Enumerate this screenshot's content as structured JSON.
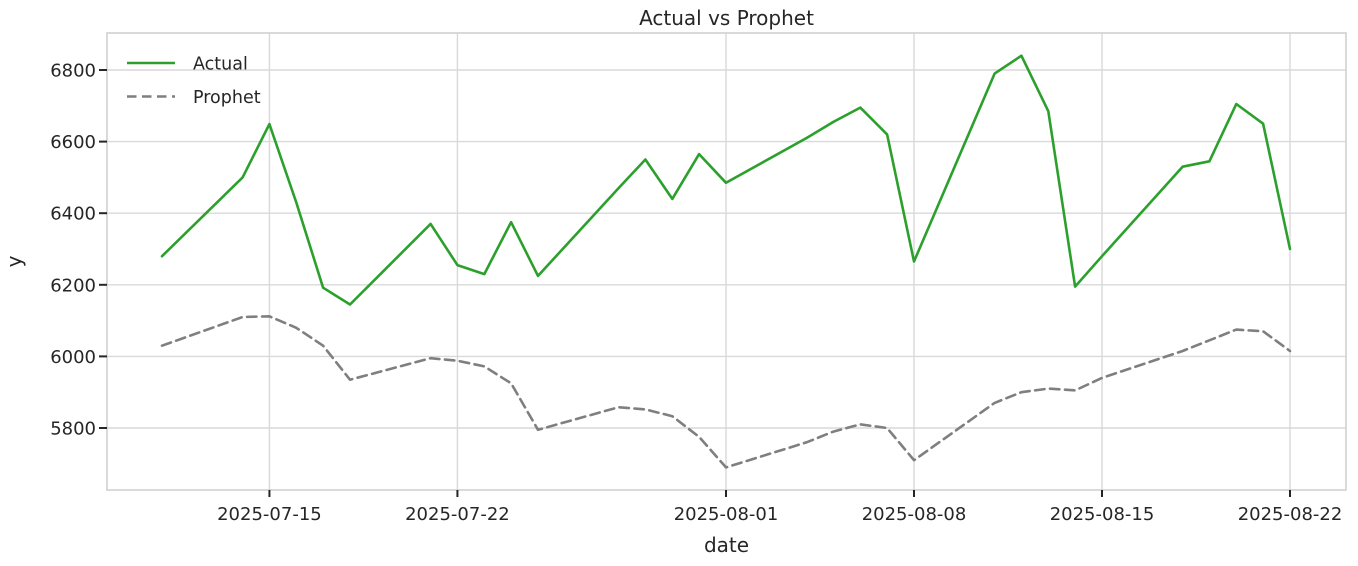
{
  "chart_data": {
    "type": "line",
    "title": "Actual vs Prophet",
    "xlabel": "date",
    "ylabel": "y",
    "grid": true,
    "legend_position": "upper left",
    "x": [
      "2025-07-11",
      "2025-07-14",
      "2025-07-15",
      "2025-07-16",
      "2025-07-17",
      "2025-07-18",
      "2025-07-21",
      "2025-07-22",
      "2025-07-23",
      "2025-07-24",
      "2025-07-25",
      "2025-07-28",
      "2025-07-29",
      "2025-07-30",
      "2025-07-31",
      "2025-08-01",
      "2025-08-04",
      "2025-08-05",
      "2025-08-06",
      "2025-08-07",
      "2025-08-08",
      "2025-08-11",
      "2025-08-12",
      "2025-08-13",
      "2025-08-14",
      "2025-08-15",
      "2025-08-18",
      "2025-08-19",
      "2025-08-20",
      "2025-08-21",
      "2025-08-22"
    ],
    "series": [
      {
        "name": "Actual",
        "color": "#2ca02c",
        "style": "solid",
        "values": [
          6280,
          6500,
          6649,
          6430,
          6192,
          6145,
          6370,
          6255,
          6230,
          6375,
          6225,
          6470,
          6550,
          6440,
          6565,
          6485,
          6610,
          6655,
          6695,
          6620,
          6265,
          6790,
          6840,
          6685,
          6195,
          6280,
          6530,
          6545,
          6705,
          6650,
          6300
        ]
      },
      {
        "name": "Prophet",
        "color": "#7f7f7f",
        "style": "dashed",
        "values": [
          6030,
          6110,
          6112,
          6080,
          6030,
          5935,
          5995,
          5988,
          5972,
          5925,
          5795,
          5858,
          5852,
          5833,
          5775,
          5690,
          5760,
          5790,
          5810,
          5800,
          5710,
          5870,
          5900,
          5910,
          5905,
          5940,
          6015,
          6045,
          6075,
          6070,
          6015
        ]
      }
    ],
    "x_tick_labels": [
      "2025-07-15",
      "2025-07-22",
      "2025-08-01",
      "2025-08-08",
      "2025-08-15",
      "2025-08-22"
    ],
    "y_ticks": [
      5800,
      6000,
      6200,
      6400,
      6600,
      6800
    ],
    "ylim": [
      5627,
      6903
    ],
    "colors": {
      "grid": "#d9d9d9",
      "spine": "#d0d0d0",
      "tick_mark": "#262626",
      "text": "#262626",
      "background": "#ffffff"
    }
  }
}
